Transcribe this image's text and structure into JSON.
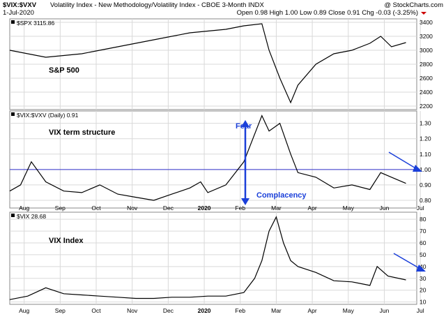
{
  "header": {
    "symbol": "$VIX:$VXV",
    "name": "Volatility Index - New Methodology/Volatility Index - CBOE 3-Month  INDX",
    "date": "1-Jul-2020",
    "ohlc": "Open 0.98  High 1.00  Low 0.89  Close 0.91  Chg -0.03 (-3.25%)",
    "watermark": "@ StockCharts.com"
  },
  "colors": {
    "line": "#000000",
    "grid": "#d9d9d9",
    "ref_line": "#3333cc",
    "annotation": "#1a3fd9"
  },
  "x_axis": {
    "labels": [
      "Aug",
      "Sep",
      "Oct",
      "Nov",
      "Dec",
      "2020",
      "Feb",
      "Mar",
      "Apr",
      "May",
      "Jun",
      "Jul"
    ],
    "bold": [
      "2020"
    ]
  },
  "panels": [
    {
      "id": "spx",
      "legend": "$SPX 3115.86",
      "annotation": "S&P 500"
    },
    {
      "id": "ratio",
      "legend": "$VIX:$VXV (Daily) 0.91",
      "annotation": "VIX term structure",
      "fear_label": "Fear",
      "complacency_label": "Complacency"
    },
    {
      "id": "vix",
      "legend": "$VIX 28.68",
      "annotation": "VIX Index"
    }
  ],
  "chart_data": [
    {
      "type": "line",
      "title": "S&P 500",
      "series": [
        {
          "name": "$SPX",
          "x": [
            0,
            1,
            2,
            2.5,
            3,
            4,
            5,
            6,
            6.5,
            7,
            7.2,
            7.5,
            7.8,
            8,
            8.5,
            9,
            9.5,
            10,
            10.3,
            10.6,
            11
          ],
          "values": [
            3000,
            2900,
            2950,
            3000,
            3050,
            3150,
            3250,
            3300,
            3350,
            3380,
            3000,
            2600,
            2250,
            2500,
            2800,
            2950,
            3000,
            3100,
            3200,
            3050,
            3110
          ]
        }
      ],
      "ylim": [
        2150,
        3450
      ],
      "yticks": [
        2200,
        2400,
        2600,
        2800,
        3000,
        3200,
        3400
      ]
    },
    {
      "type": "line",
      "title": "VIX term structure",
      "series": [
        {
          "name": "$VIX:$VXV (Daily)",
          "x": [
            0,
            0.3,
            0.6,
            1,
            1.5,
            2,
            2.5,
            3,
            3.5,
            4,
            4.5,
            5,
            5.3,
            5.5,
            6,
            6.5,
            7,
            7.2,
            7.5,
            7.8,
            8,
            8.5,
            9,
            9.5,
            10,
            10.3,
            10.6,
            11
          ],
          "values": [
            0.86,
            0.9,
            1.05,
            0.92,
            0.86,
            0.85,
            0.9,
            0.84,
            0.82,
            0.8,
            0.84,
            0.88,
            0.92,
            0.85,
            0.9,
            1.05,
            1.35,
            1.25,
            1.3,
            1.1,
            0.98,
            0.95,
            0.88,
            0.9,
            0.87,
            0.98,
            0.95,
            0.91
          ]
        }
      ],
      "ylim": [
        0.75,
        1.38
      ],
      "yticks": [
        0.8,
        0.9,
        1.0,
        1.1,
        1.2,
        1.3
      ],
      "reference_line": 1.0
    },
    {
      "type": "line",
      "title": "VIX Index",
      "series": [
        {
          "name": "$VIX",
          "x": [
            0,
            0.5,
            1,
            1.5,
            2,
            2.5,
            3,
            3.5,
            4,
            4.5,
            5,
            5.5,
            6,
            6.5,
            6.8,
            7,
            7.2,
            7.4,
            7.6,
            7.8,
            8,
            8.5,
            9,
            9.5,
            10,
            10.2,
            10.5,
            11
          ],
          "values": [
            12,
            15,
            22,
            17,
            16,
            15,
            14,
            13,
            13,
            14,
            14,
            15,
            15,
            18,
            30,
            45,
            70,
            82,
            60,
            45,
            40,
            35,
            28,
            27,
            24,
            40,
            32,
            28.68
          ]
        }
      ],
      "ylim": [
        8,
        86
      ],
      "yticks": [
        10,
        20,
        30,
        40,
        50,
        60,
        70,
        80
      ]
    }
  ]
}
